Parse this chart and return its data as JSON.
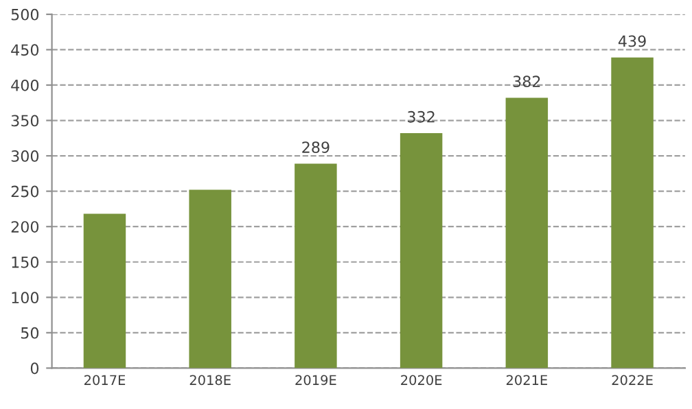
{
  "chart_data": {
    "type": "bar",
    "categories": [
      "2017E",
      "2018E",
      "2019E",
      "2020E",
      "2021E",
      "2022E"
    ],
    "values": [
      218,
      252,
      289,
      332,
      382,
      439
    ],
    "value_labels": [
      null,
      null,
      "289",
      "332",
      "382",
      "439"
    ],
    "color": "#77933c",
    "ylim": [
      0,
      500
    ],
    "yticks": [
      0,
      50,
      100,
      150,
      200,
      250,
      300,
      350,
      400,
      450,
      500
    ],
    "grid": "y",
    "line_style": "dashed"
  }
}
